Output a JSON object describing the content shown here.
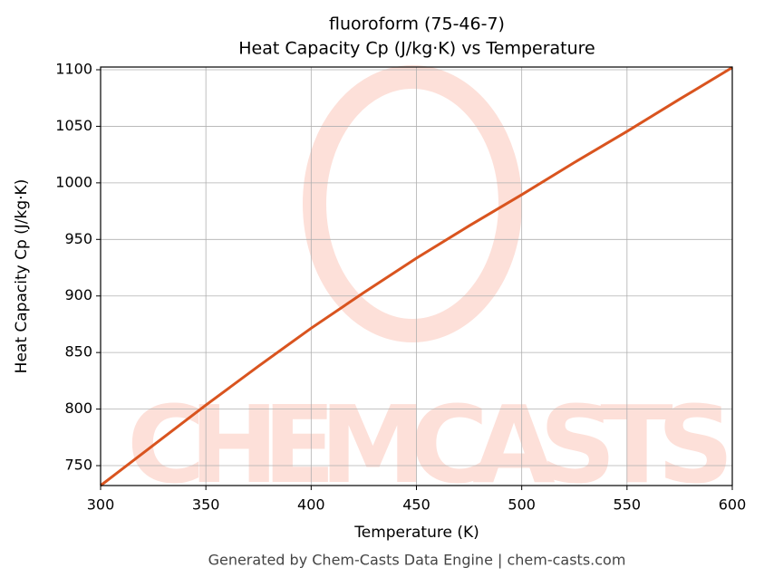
{
  "chart_data": {
    "type": "line",
    "title": "fluoroform (75-46-7)",
    "subtitle": "Heat Capacity Cp (J/kg·K) vs Temperature",
    "x_label": "Temperature (K)",
    "y_label": "Heat Capacity Cp (J/kg·K)",
    "footer": "Generated by Chem-Casts Data Engine | chem-casts.com",
    "watermark": "CHEMCASTS",
    "x": [
      300,
      325,
      350,
      375,
      400,
      425,
      450,
      475,
      500,
      525,
      550,
      575,
      600
    ],
    "series": [
      {
        "name": "Cp",
        "color": "#d9541f",
        "values": [
          732.4,
          768,
          803.5,
          838,
          871.5,
          903,
          933.4,
          962,
          989.5,
          1018,
          1045.5,
          1074,
          1102
        ]
      }
    ],
    "xlim": [
      300,
      600
    ],
    "xticks": [
      300,
      350,
      400,
      450,
      500,
      550,
      600
    ],
    "ylim": [
      732.4,
      1102.4
    ],
    "yticks": [
      750,
      800,
      850,
      900,
      950,
      1000,
      1050,
      1100
    ],
    "grid": true
  }
}
